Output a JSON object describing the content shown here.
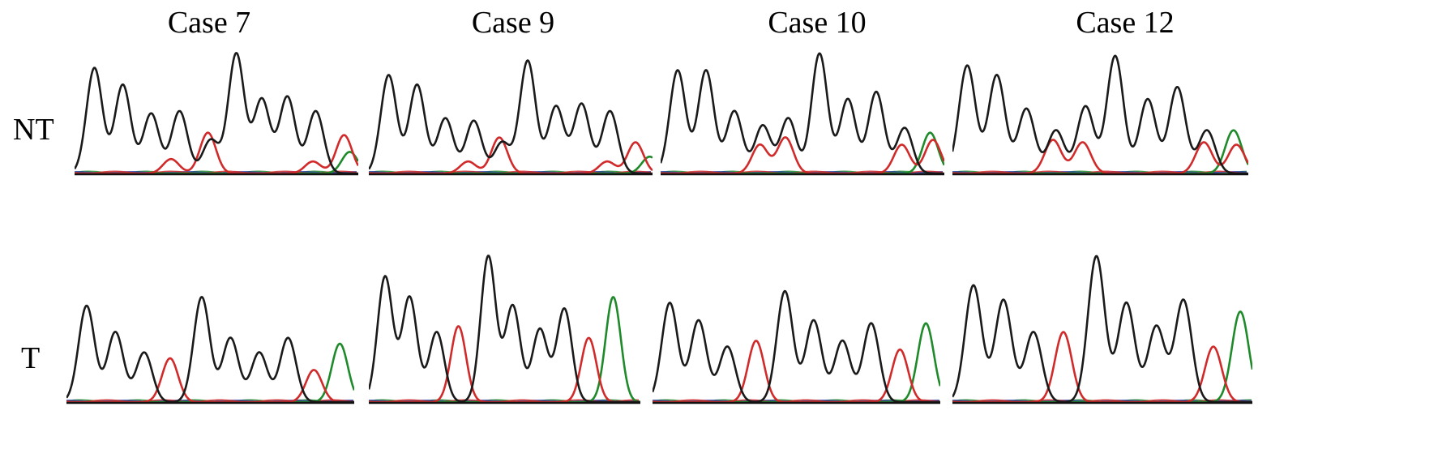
{
  "columns": [
    "Case 7",
    "Case 9",
    "Case 10",
    "Case 12"
  ],
  "rows": [
    "NT",
    "T"
  ],
  "colors": {
    "black": "#1a1a1a",
    "red": "#d12a2a",
    "green": "#1e8a2a",
    "blue": "#1f2fb0"
  },
  "chart_data": {
    "type": "chromatogram",
    "panels": [
      {
        "case": "Case 7",
        "row": "NT",
        "peaks": [
          {
            "p": 0.07,
            "h": 0.88,
            "c": "black"
          },
          {
            "p": 0.17,
            "h": 0.74,
            "c": "black"
          },
          {
            "p": 0.27,
            "h": 0.5,
            "c": "black"
          },
          {
            "p": 0.37,
            "h": 0.52,
            "c": "black"
          },
          {
            "p": 0.47,
            "h": 0.34,
            "c": "red"
          },
          {
            "p": 0.48,
            "h": 0.28,
            "c": "black"
          },
          {
            "p": 0.57,
            "h": 1.0,
            "c": "black"
          },
          {
            "p": 0.66,
            "h": 0.62,
            "c": "black"
          },
          {
            "p": 0.75,
            "h": 0.64,
            "c": "black"
          },
          {
            "p": 0.85,
            "h": 0.52,
            "c": "black"
          },
          {
            "p": 0.95,
            "h": 0.32,
            "c": "red"
          },
          {
            "p": 0.97,
            "h": 0.18,
            "c": "green"
          },
          {
            "p": 0.34,
            "h": 0.12,
            "c": "red"
          },
          {
            "p": 0.84,
            "h": 0.1,
            "c": "red"
          }
        ]
      },
      {
        "case": "Case 9",
        "row": "NT",
        "peaks": [
          {
            "p": 0.07,
            "h": 0.82,
            "c": "black"
          },
          {
            "p": 0.17,
            "h": 0.74,
            "c": "black"
          },
          {
            "p": 0.27,
            "h": 0.46,
            "c": "black"
          },
          {
            "p": 0.37,
            "h": 0.44,
            "c": "black"
          },
          {
            "p": 0.46,
            "h": 0.3,
            "c": "red"
          },
          {
            "p": 0.47,
            "h": 0.26,
            "c": "black"
          },
          {
            "p": 0.56,
            "h": 0.94,
            "c": "black"
          },
          {
            "p": 0.66,
            "h": 0.56,
            "c": "black"
          },
          {
            "p": 0.75,
            "h": 0.58,
            "c": "black"
          },
          {
            "p": 0.85,
            "h": 0.52,
            "c": "black"
          },
          {
            "p": 0.94,
            "h": 0.26,
            "c": "red"
          },
          {
            "p": 0.99,
            "h": 0.14,
            "c": "green"
          },
          {
            "p": 0.35,
            "h": 0.1,
            "c": "red"
          },
          {
            "p": 0.84,
            "h": 0.1,
            "c": "red"
          }
        ]
      },
      {
        "case": "Case 10",
        "row": "NT",
        "peaks": [
          {
            "p": 0.06,
            "h": 0.86,
            "c": "black"
          },
          {
            "p": 0.16,
            "h": 0.86,
            "c": "black"
          },
          {
            "p": 0.26,
            "h": 0.52,
            "c": "black"
          },
          {
            "p": 0.36,
            "h": 0.4,
            "c": "black"
          },
          {
            "p": 0.35,
            "h": 0.24,
            "c": "red"
          },
          {
            "p": 0.45,
            "h": 0.46,
            "c": "black"
          },
          {
            "p": 0.44,
            "h": 0.3,
            "c": "red"
          },
          {
            "p": 0.56,
            "h": 1.0,
            "c": "black"
          },
          {
            "p": 0.66,
            "h": 0.62,
            "c": "black"
          },
          {
            "p": 0.76,
            "h": 0.68,
            "c": "black"
          },
          {
            "p": 0.86,
            "h": 0.38,
            "c": "black"
          },
          {
            "p": 0.85,
            "h": 0.24,
            "c": "red"
          },
          {
            "p": 0.95,
            "h": 0.34,
            "c": "green"
          },
          {
            "p": 0.96,
            "h": 0.28,
            "c": "red"
          }
        ]
      },
      {
        "case": "Case 12",
        "row": "NT",
        "peaks": [
          {
            "p": 0.05,
            "h": 0.9,
            "c": "black"
          },
          {
            "p": 0.15,
            "h": 0.82,
            "c": "black"
          },
          {
            "p": 0.25,
            "h": 0.54,
            "c": "black"
          },
          {
            "p": 0.35,
            "h": 0.36,
            "c": "black"
          },
          {
            "p": 0.34,
            "h": 0.28,
            "c": "red"
          },
          {
            "p": 0.45,
            "h": 0.56,
            "c": "black"
          },
          {
            "p": 0.44,
            "h": 0.26,
            "c": "red"
          },
          {
            "p": 0.55,
            "h": 0.98,
            "c": "black"
          },
          {
            "p": 0.66,
            "h": 0.62,
            "c": "black"
          },
          {
            "p": 0.76,
            "h": 0.72,
            "c": "black"
          },
          {
            "p": 0.86,
            "h": 0.36,
            "c": "black"
          },
          {
            "p": 0.85,
            "h": 0.26,
            "c": "red"
          },
          {
            "p": 0.95,
            "h": 0.36,
            "c": "green"
          },
          {
            "p": 0.96,
            "h": 0.24,
            "c": "red"
          }
        ]
      },
      {
        "case": "Case 7",
        "row": "T",
        "peaks": [
          {
            "p": 0.07,
            "h": 0.66,
            "c": "black"
          },
          {
            "p": 0.17,
            "h": 0.48,
            "c": "black"
          },
          {
            "p": 0.27,
            "h": 0.34,
            "c": "black"
          },
          {
            "p": 0.36,
            "h": 0.3,
            "c": "red"
          },
          {
            "p": 0.47,
            "h": 0.72,
            "c": "black"
          },
          {
            "p": 0.57,
            "h": 0.44,
            "c": "black"
          },
          {
            "p": 0.67,
            "h": 0.34,
            "c": "black"
          },
          {
            "p": 0.77,
            "h": 0.44,
            "c": "black"
          },
          {
            "p": 0.86,
            "h": 0.22,
            "c": "red"
          },
          {
            "p": 0.95,
            "h": 0.4,
            "c": "green"
          }
        ]
      },
      {
        "case": "Case 9",
        "row": "T",
        "peaks": [
          {
            "p": 0.06,
            "h": 0.86,
            "c": "black"
          },
          {
            "p": 0.15,
            "h": 0.72,
            "c": "black"
          },
          {
            "p": 0.25,
            "h": 0.48,
            "c": "black"
          },
          {
            "p": 0.33,
            "h": 0.52,
            "c": "red"
          },
          {
            "p": 0.44,
            "h": 1.0,
            "c": "black"
          },
          {
            "p": 0.53,
            "h": 0.66,
            "c": "black"
          },
          {
            "p": 0.63,
            "h": 0.5,
            "c": "black"
          },
          {
            "p": 0.72,
            "h": 0.64,
            "c": "black"
          },
          {
            "p": 0.81,
            "h": 0.44,
            "c": "red"
          },
          {
            "p": 0.9,
            "h": 0.72,
            "c": "green"
          }
        ]
      },
      {
        "case": "Case 10",
        "row": "T",
        "peaks": [
          {
            "p": 0.06,
            "h": 0.68,
            "c": "black"
          },
          {
            "p": 0.16,
            "h": 0.56,
            "c": "black"
          },
          {
            "p": 0.26,
            "h": 0.38,
            "c": "black"
          },
          {
            "p": 0.36,
            "h": 0.42,
            "c": "red"
          },
          {
            "p": 0.46,
            "h": 0.76,
            "c": "black"
          },
          {
            "p": 0.56,
            "h": 0.56,
            "c": "black"
          },
          {
            "p": 0.66,
            "h": 0.42,
            "c": "black"
          },
          {
            "p": 0.76,
            "h": 0.54,
            "c": "black"
          },
          {
            "p": 0.86,
            "h": 0.36,
            "c": "red"
          },
          {
            "p": 0.95,
            "h": 0.54,
            "c": "green"
          }
        ]
      },
      {
        "case": "Case 12",
        "row": "T",
        "peaks": [
          {
            "p": 0.07,
            "h": 0.8,
            "c": "black"
          },
          {
            "p": 0.17,
            "h": 0.7,
            "c": "black"
          },
          {
            "p": 0.27,
            "h": 0.48,
            "c": "black"
          },
          {
            "p": 0.37,
            "h": 0.48,
            "c": "red"
          },
          {
            "p": 0.48,
            "h": 1.0,
            "c": "black"
          },
          {
            "p": 0.58,
            "h": 0.68,
            "c": "black"
          },
          {
            "p": 0.68,
            "h": 0.52,
            "c": "black"
          },
          {
            "p": 0.77,
            "h": 0.7,
            "c": "black"
          },
          {
            "p": 0.87,
            "h": 0.38,
            "c": "red"
          },
          {
            "p": 0.96,
            "h": 0.62,
            "c": "green"
          }
        ]
      }
    ]
  }
}
